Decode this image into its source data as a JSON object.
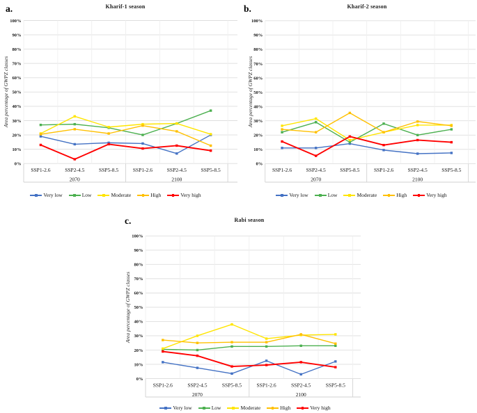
{
  "figure": {
    "background": "#ffffff",
    "panel_labels": [
      "a.",
      "b.",
      "c."
    ]
  },
  "chart_data": [
    {
      "type": "line",
      "panel_label": "a.",
      "title": "Kharif-1 season",
      "ylabel": "Area percentage of GWPZ classes",
      "xlabel": "",
      "ylim": [
        0,
        100
      ],
      "grid": true,
      "legend_position": "bottom",
      "yticks": [
        "0%",
        "10%",
        "20%",
        "30%",
        "40%",
        "50%",
        "60%",
        "70%",
        "80%",
        "90%",
        "100%"
      ],
      "categories": [
        "SSP1-2.6",
        "SSP2-4.5",
        "SSP5-8.5",
        "SSP1-2.6",
        "SSP2-4.5",
        "SSP5-8.5"
      ],
      "category_groups": [
        "2070",
        "2100"
      ],
      "series": [
        {
          "name": "Very low",
          "color": "#4472C4",
          "values": [
            19,
            13.5,
            14.5,
            14,
            7,
            20
          ]
        },
        {
          "name": "Low",
          "color": "#4CB050",
          "values": [
            27,
            27.5,
            25,
            20,
            28,
            37
          ]
        },
        {
          "name": "Moderate",
          "color": "#FFE500",
          "values": [
            21,
            33,
            25.5,
            27.5,
            28,
            20.5
          ]
        },
        {
          "name": "High",
          "color": "#FFC000",
          "values": [
            20.5,
            24,
            21,
            26.5,
            22.5,
            12.5
          ]
        },
        {
          "name": "Very high",
          "color": "#FF0000",
          "values": [
            13,
            3,
            13.5,
            10.5,
            12.5,
            9
          ]
        }
      ]
    },
    {
      "type": "line",
      "panel_label": "b.",
      "title": "Kharif-2 season",
      "ylabel": "Area percentage of GWPZ classes",
      "xlabel": "",
      "ylim": [
        0,
        100
      ],
      "grid": true,
      "legend_position": "bottom",
      "yticks": [
        "0%",
        "10%",
        "20%",
        "30%",
        "40%",
        "50%",
        "60%",
        "70%",
        "80%",
        "90%",
        "100%"
      ],
      "categories": [
        "SSP1-2.6",
        "SSP2-4.5",
        "SSP5-8.5",
        "SSP1-2.6",
        "SSP2-4.5",
        "SSP5-8.5"
      ],
      "category_groups": [
        "2070",
        "2100"
      ],
      "series": [
        {
          "name": "Very low",
          "color": "#4472C4",
          "values": [
            11,
            11,
            14,
            9.5,
            7,
            7.5
          ]
        },
        {
          "name": "Low",
          "color": "#4CB050",
          "values": [
            22,
            29,
            15,
            28,
            20,
            24
          ]
        },
        {
          "name": "Moderate",
          "color": "#FFE500",
          "values": [
            26.5,
            31.5,
            16.5,
            22,
            27,
            27
          ]
        },
        {
          "name": "High",
          "color": "#FFC000",
          "values": [
            24,
            22,
            35.5,
            22,
            29.5,
            26.5
          ]
        },
        {
          "name": "Very high",
          "color": "#FF0000",
          "values": [
            15.5,
            5.5,
            19,
            13,
            16.5,
            15
          ]
        }
      ]
    },
    {
      "type": "line",
      "panel_label": "c.",
      "title": "Rabi season",
      "ylabel": "Area percentage of GWPZ classes",
      "xlabel": "",
      "ylim": [
        0,
        100
      ],
      "grid": true,
      "legend_position": "bottom",
      "yticks": [
        "0%",
        "10%",
        "20%",
        "30%",
        "40%",
        "50%",
        "60%",
        "70%",
        "80%",
        "90%",
        "100%"
      ],
      "categories": [
        "SSP1-2.6",
        "SSP2-4.5",
        "SSP5-8.5",
        "SSP1-2.6",
        "SSP2-4.5",
        "SSP5-8.5"
      ],
      "category_groups": [
        "2070",
        "2100"
      ],
      "series": [
        {
          "name": "Very low",
          "color": "#4472C4",
          "values": [
            11.5,
            7.5,
            3.5,
            12.5,
            3,
            12
          ]
        },
        {
          "name": "Low",
          "color": "#4CB050",
          "values": [
            20.5,
            20,
            22.5,
            22.5,
            23,
            23
          ]
        },
        {
          "name": "Moderate",
          "color": "#FFE500",
          "values": [
            21,
            30,
            38,
            28,
            30.5,
            31
          ]
        },
        {
          "name": "High",
          "color": "#FFC000",
          "values": [
            27,
            25,
            25.5,
            25.5,
            31,
            24.5
          ]
        },
        {
          "name": "Very high",
          "color": "#FF0000",
          "values": [
            19,
            16,
            8.5,
            9.5,
            11.5,
            8
          ]
        }
      ]
    }
  ]
}
